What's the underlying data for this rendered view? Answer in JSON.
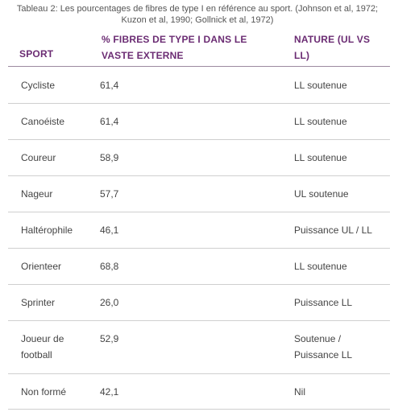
{
  "caption": "Tableau 2: Les pourcentages de fibres de type I en référence au sport. (Johnson et al, 1972; Kuzon et al, 1990; Gollnick et al, 1972)",
  "headers": {
    "sport": "SPORT",
    "pct": "% FIBRES DE TYPE I DANS LE VASTE EXTERNE",
    "nature": "NATURE (UL VS LL)"
  },
  "rows": [
    {
      "sport": "Cycliste",
      "pct": "61,4",
      "nature": "LL soutenue"
    },
    {
      "sport": "Canoéiste",
      "pct": "61,4",
      "nature": "LL soutenue"
    },
    {
      "sport": "Coureur",
      "pct": "58,9",
      "nature": "LL soutenue"
    },
    {
      "sport": "Nageur",
      "pct": "57,7",
      "nature": "UL soutenue"
    },
    {
      "sport": "Haltérophile",
      "pct": "46,1",
      "nature": "Puissance UL / LL"
    },
    {
      "sport": "Orienteer",
      "pct": "68,8",
      "nature": "LL soutenue"
    },
    {
      "sport": "Sprinter",
      "pct": "26,0",
      "nature": "Puissance LL"
    },
    {
      "sport": "Joueur de football",
      "pct": "52,9",
      "nature": "Soutenue / Puissance LL"
    },
    {
      "sport": "Non formé",
      "pct": "42,1",
      "nature": "Nil"
    }
  ]
}
